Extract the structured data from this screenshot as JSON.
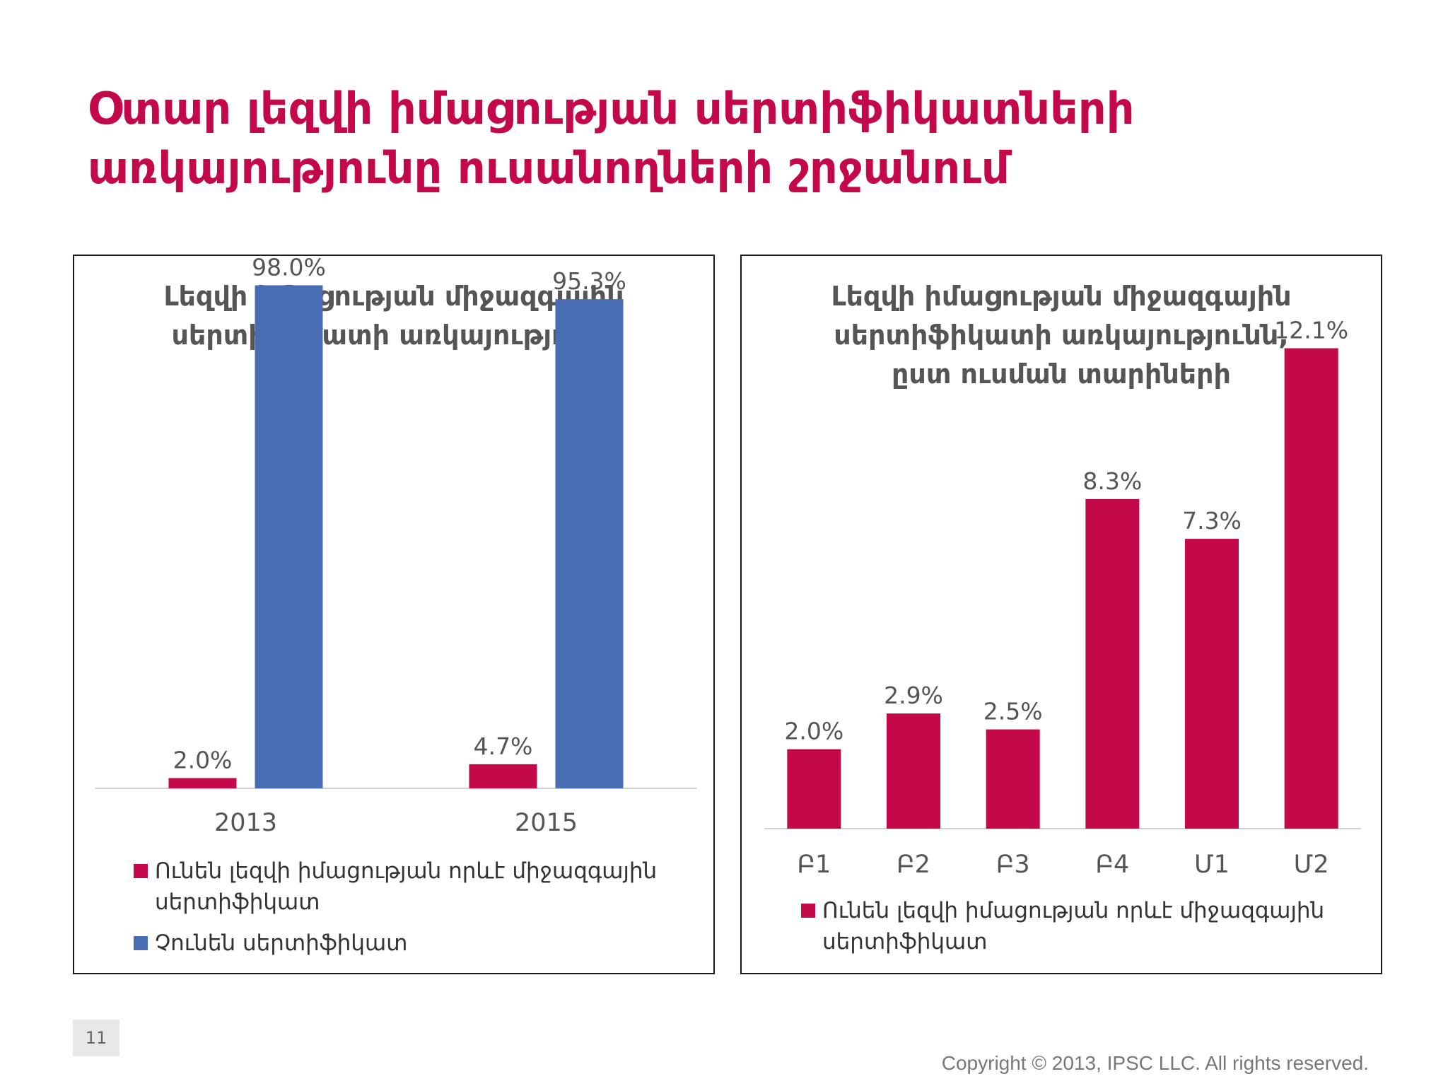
{
  "slide": {
    "title_lines": [
      "Օտար լեզվի իմացության սերտիֆիկատների",
      "առկայությունը ուսանողների շրջանում"
    ],
    "page_number": "11",
    "copyright": "Copyright © 2013, IPSC LLC. All rights reserved."
  },
  "colors": {
    "accent": "#c3094a",
    "blue": "#486db3",
    "title": "#c3094a"
  },
  "chart_data": [
    {
      "type": "bar",
      "title_lines": [
        "Լեզվի իմացության միջազգային",
        "սերտիֆիկատի առկայությունը"
      ],
      "categories": [
        "2013",
        "2015"
      ],
      "series": [
        {
          "name": "Ունեն լեզվի իմացության որևէ միջազգային սերտիֆիկատ",
          "color": "#c3094a",
          "values": [
            2.0,
            4.7
          ],
          "labels": [
            "2.0%",
            "4.7%"
          ]
        },
        {
          "name": "Չունեն սերտիֆիկատ",
          "color": "#486db3",
          "values": [
            98.0,
            95.3
          ],
          "labels": [
            "98.0%",
            "95.3%"
          ]
        }
      ],
      "ylim": [
        0,
        100
      ],
      "grid": false,
      "legend_position": "bottom"
    },
    {
      "type": "bar",
      "title_lines": [
        "Լեզվի իմացության միջազգային",
        "սերտիֆիկատի առկայությունն,",
        "ըստ ուսման տարիների"
      ],
      "categories": [
        "Բ1",
        "Բ2",
        "Բ3",
        "Բ4",
        "Մ1",
        "Մ2"
      ],
      "series": [
        {
          "name": "Ունեն լեզվի իմացության որևէ միջազգային սերտիֆիկատ",
          "color": "#c3094a",
          "values": [
            2.0,
            2.9,
            2.5,
            8.3,
            7.3,
            12.1
          ],
          "labels": [
            "2.0%",
            "2.9%",
            "2.5%",
            "8.3%",
            "7.3%",
            "12.1%"
          ]
        }
      ],
      "ylim": [
        0,
        13
      ],
      "grid": false,
      "legend_position": "bottom"
    }
  ]
}
